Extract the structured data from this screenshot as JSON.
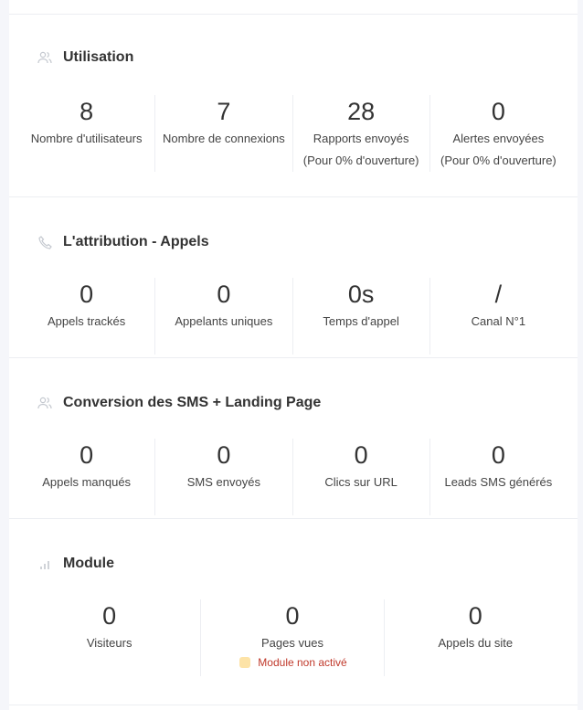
{
  "sections": [
    {
      "title": "Utilisation",
      "icon": "users-icon",
      "stats": [
        {
          "value": "8",
          "label": "Nombre d'utilisateurs",
          "sub": ""
        },
        {
          "value": "7",
          "label": "Nombre de connexions",
          "sub": ""
        },
        {
          "value": "28",
          "label": "Rapports envoyés",
          "sub": "(Pour 0% d'ouverture)"
        },
        {
          "value": "0",
          "label": "Alertes envoyées",
          "sub": "(Pour 0% d'ouverture)"
        }
      ]
    },
    {
      "title": "L'attribution - Appels",
      "icon": "phone-icon",
      "stats": [
        {
          "value": "0",
          "label": "Appels trackés"
        },
        {
          "value": "0",
          "label": "Appelants uniques"
        },
        {
          "value": "0s",
          "label": "Temps d'appel"
        },
        {
          "value": "/",
          "label": "Canal N°1"
        }
      ]
    },
    {
      "title": "Conversion des SMS + Landing Page",
      "icon": "users-icon",
      "stats": [
        {
          "value": "0",
          "label": "Appels manqués"
        },
        {
          "value": "0",
          "label": "SMS envoyés"
        },
        {
          "value": "0",
          "label": "Clics sur URL"
        },
        {
          "value": "0",
          "label": "Leads SMS générés"
        }
      ]
    },
    {
      "title": "Module",
      "icon": "bar-chart-icon",
      "stats": [
        {
          "value": "0",
          "label": "Visiteurs"
        },
        {
          "value": "0",
          "label": "Pages vues"
        },
        {
          "value": "0",
          "label": "Appels du site"
        }
      ],
      "note": "Module non activé"
    }
  ]
}
